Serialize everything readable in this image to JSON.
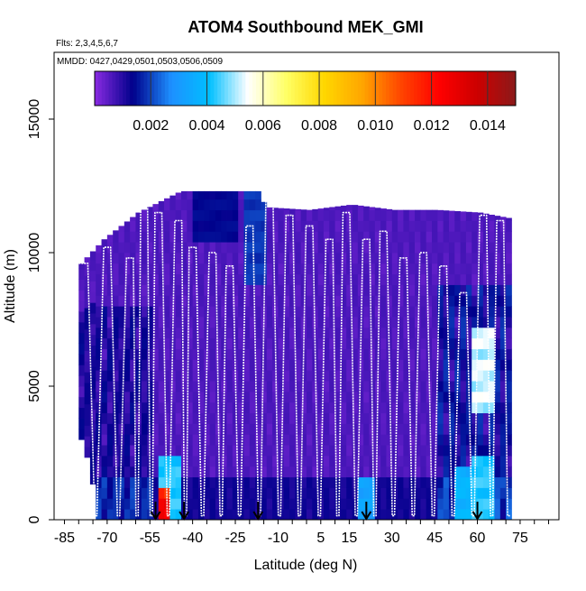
{
  "chart_data": {
    "type": "heatmap",
    "title": "ATOM4 Southbound MEK_GMI",
    "subtitle_flights": "Flts: 2,3,4,5,6,7",
    "subtitle_dates": "MMDD: 0427,0429,0501,0503,0506,0509",
    "xlabel": "Latitude (deg N)",
    "ylabel": "Altitude (m)",
    "xlim": [
      -88,
      88
    ],
    "ylim": [
      0,
      17500
    ],
    "x_ticks": [
      -85,
      -70,
      -55,
      -40,
      -25,
      -10,
      5,
      15,
      30,
      45,
      60,
      75
    ],
    "y_ticks": [
      0,
      5000,
      10000,
      15000
    ],
    "colorbar": {
      "range": [
        0,
        0.015
      ],
      "tick_values": [
        0.002,
        0.004,
        0.006,
        0.008,
        0.01,
        0.012,
        0.014
      ],
      "tick_labels": [
        "0.002",
        "0.004",
        "0.006",
        "0.008",
        "0.010",
        "0.012",
        "0.014"
      ],
      "colors": [
        "#8a2be2",
        "#00008b",
        "#1e90ff",
        "#00bfff",
        "#ffffff",
        "#ffff66",
        "#ffd700",
        "#ffa500",
        "#ff4500",
        "#ff0000",
        "#cc0000",
        "#8b1a1a"
      ]
    },
    "curtain_top": [
      {
        "lat": -80,
        "alt": 9600
      },
      {
        "lat": -72,
        "alt": 10500
      },
      {
        "lat": -60,
        "alt": 11500
      },
      {
        "lat": -45,
        "alt": 12300
      },
      {
        "lat": -30,
        "alt": 12300
      },
      {
        "lat": -18,
        "alt": 12300
      },
      {
        "lat": -15,
        "alt": 11700
      },
      {
        "lat": 0,
        "alt": 11600
      },
      {
        "lat": 15,
        "alt": 11800
      },
      {
        "lat": 30,
        "alt": 11600
      },
      {
        "lat": 45,
        "alt": 11600
      },
      {
        "lat": 60,
        "alt": 11500
      },
      {
        "lat": 70,
        "alt": 11300
      }
    ],
    "curtain_bottom": [
      {
        "lat": -80,
        "alt": 3000
      },
      {
        "lat": -77,
        "alt": 2000
      },
      {
        "lat": -74,
        "alt": 0
      },
      {
        "lat": 72,
        "alt": 0
      }
    ],
    "high_regions": [
      {
        "lat_min": -52,
        "lat_max": -48,
        "alt_min": 0,
        "alt_max": 1200,
        "value": 0.013
      },
      {
        "lat_min": -52,
        "lat_max": -44,
        "alt_min": 0,
        "alt_max": 2400,
        "value": 0.0045
      },
      {
        "lat_min": 58,
        "lat_max": 66,
        "alt_min": 4200,
        "alt_max": 7000,
        "value": 0.0055
      },
      {
        "lat_min": 58,
        "lat_max": 66,
        "alt_min": 200,
        "alt_max": 2200,
        "value": 0.0045
      },
      {
        "lat_min": 52,
        "lat_max": 60,
        "alt_min": 200,
        "alt_max": 2000,
        "value": 0.004
      },
      {
        "lat_min": 18,
        "lat_max": 24,
        "alt_min": 200,
        "alt_max": 1400,
        "value": 0.0035
      },
      {
        "lat_min": -22,
        "lat_max": -14,
        "alt_min": 9000,
        "alt_max": 12300,
        "value": 0.002
      },
      {
        "lat_min": -40,
        "lat_max": -24,
        "alt_min": 10500,
        "alt_max": 12300,
        "value": 0.0015
      }
    ],
    "flight_profiles": [
      {
        "lat": -78,
        "top": 9600
      },
      {
        "lat": -70,
        "top": 10200
      },
      {
        "lat": -62,
        "top": 9800
      },
      {
        "lat": -57,
        "top": 11800
      },
      {
        "lat": -52,
        "top": 11500
      },
      {
        "lat": -45,
        "top": 11200
      },
      {
        "lat": -40,
        "top": 10200
      },
      {
        "lat": -33,
        "top": 10000
      },
      {
        "lat": -27,
        "top": 9500
      },
      {
        "lat": -20,
        "top": 11000
      },
      {
        "lat": -13,
        "top": 12300
      },
      {
        "lat": -6,
        "top": 11400
      },
      {
        "lat": 1,
        "top": 11000
      },
      {
        "lat": 8,
        "top": 10500
      },
      {
        "lat": 14,
        "top": 11500
      },
      {
        "lat": 21,
        "top": 10500
      },
      {
        "lat": 27,
        "top": 10800
      },
      {
        "lat": 34,
        "top": 9800
      },
      {
        "lat": 41,
        "top": 10000
      },
      {
        "lat": 48,
        "top": 9500
      },
      {
        "lat": 55,
        "top": 8500
      },
      {
        "lat": 62,
        "top": 11400
      },
      {
        "lat": 68,
        "top": 11200
      }
    ],
    "arrow_markers_lat": [
      -53,
      -43,
      -17,
      21,
      60
    ]
  }
}
